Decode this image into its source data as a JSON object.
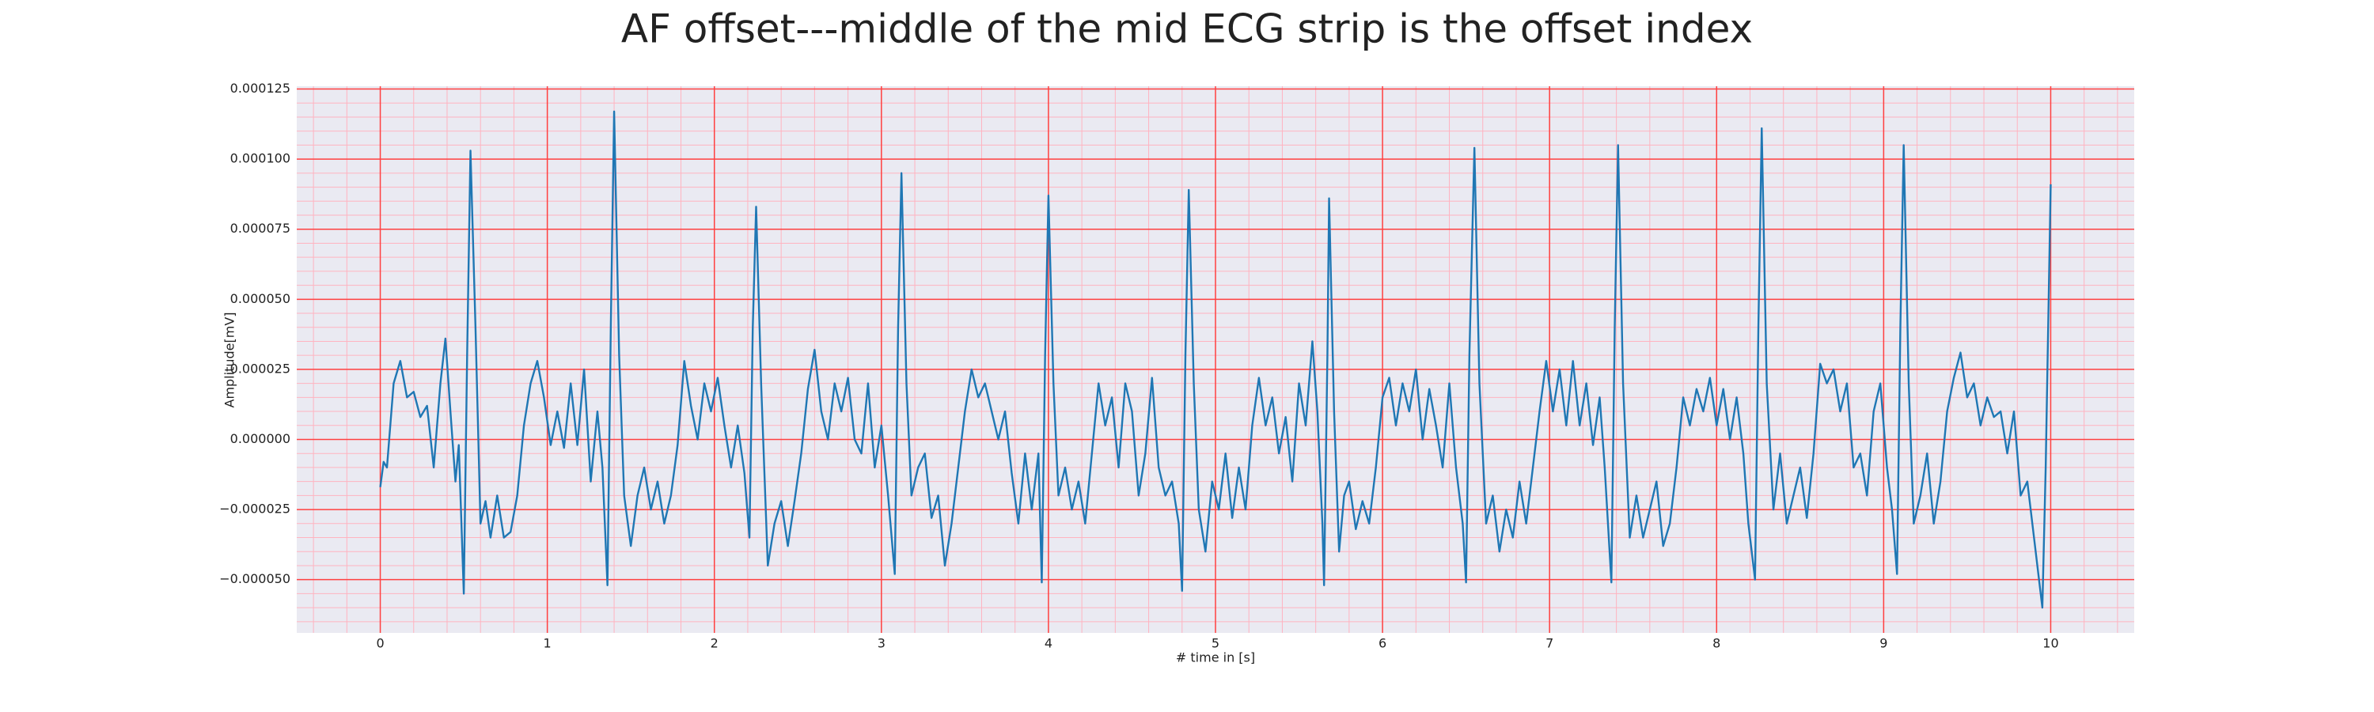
{
  "chart_data": {
    "type": "line",
    "title": "AF offset---middle of the mid ECG strip is the offset index",
    "xlabel": "# time in [s]",
    "ylabel": "Amplitude[mV]",
    "color": "#1f77b4",
    "grid": true,
    "minor_divisions": 5,
    "xlim": [
      -0.5,
      10.5
    ],
    "xticks": [
      0,
      1,
      2,
      3,
      4,
      5,
      6,
      7,
      8,
      9,
      10
    ],
    "ylim": [
      -6.9e-05,
      0.000126
    ],
    "yticks": [
      {
        "value": -5e-05,
        "label": "−0.000050"
      },
      {
        "value": -2.5e-05,
        "label": "−0.000025"
      },
      {
        "value": 0,
        "label": "0.000000"
      },
      {
        "value": 2.5e-05,
        "label": "0.000025"
      },
      {
        "value": 5e-05,
        "label": "0.000050"
      },
      {
        "value": 7.5e-05,
        "label": "0.000075"
      },
      {
        "value": 0.0001,
        "label": "0.000100"
      },
      {
        "value": 0.000125,
        "label": "0.000125"
      }
    ],
    "x": [
      0.0,
      0.02,
      0.04,
      0.08,
      0.12,
      0.16,
      0.2,
      0.24,
      0.28,
      0.32,
      0.36,
      0.39,
      0.42,
      0.45,
      0.47,
      0.5,
      0.52,
      0.54,
      0.57,
      0.6,
      0.63,
      0.66,
      0.7,
      0.74,
      0.78,
      0.82,
      0.86,
      0.9,
      0.94,
      0.98,
      1.02,
      1.06,
      1.1,
      1.14,
      1.18,
      1.22,
      1.26,
      1.3,
      1.33,
      1.36,
      1.38,
      1.4,
      1.43,
      1.46,
      1.5,
      1.54,
      1.58,
      1.62,
      1.66,
      1.7,
      1.74,
      1.78,
      1.82,
      1.86,
      1.9,
      1.94,
      1.98,
      2.02,
      2.06,
      2.1,
      2.14,
      2.18,
      2.21,
      2.23,
      2.25,
      2.28,
      2.32,
      2.36,
      2.4,
      2.44,
      2.48,
      2.52,
      2.56,
      2.6,
      2.64,
      2.68,
      2.72,
      2.76,
      2.8,
      2.84,
      2.88,
      2.92,
      2.96,
      3.0,
      3.04,
      3.08,
      3.1,
      3.12,
      3.15,
      3.18,
      3.22,
      3.26,
      3.3,
      3.34,
      3.38,
      3.42,
      3.46,
      3.5,
      3.54,
      3.58,
      3.62,
      3.66,
      3.7,
      3.74,
      3.78,
      3.82,
      3.86,
      3.9,
      3.94,
      3.96,
      3.98,
      4.0,
      4.03,
      4.06,
      4.1,
      4.14,
      4.18,
      4.22,
      4.26,
      4.3,
      4.34,
      4.38,
      4.42,
      4.46,
      4.5,
      4.54,
      4.58,
      4.62,
      4.66,
      4.7,
      4.74,
      4.78,
      4.8,
      4.82,
      4.84,
      4.87,
      4.9,
      4.94,
      4.98,
      5.02,
      5.06,
      5.1,
      5.14,
      5.18,
      5.22,
      5.26,
      5.3,
      5.34,
      5.38,
      5.42,
      5.46,
      5.5,
      5.54,
      5.58,
      5.61,
      5.64,
      5.65,
      5.67,
      5.68,
      5.71,
      5.74,
      5.77,
      5.8,
      5.84,
      5.88,
      5.92,
      5.96,
      6.0,
      6.04,
      6.08,
      6.12,
      6.16,
      6.2,
      6.24,
      6.28,
      6.32,
      6.36,
      6.4,
      6.44,
      6.48,
      6.5,
      6.52,
      6.55,
      6.58,
      6.62,
      6.66,
      6.7,
      6.74,
      6.78,
      6.82,
      6.86,
      6.9,
      6.94,
      6.98,
      7.02,
      7.06,
      7.1,
      7.14,
      7.18,
      7.22,
      7.26,
      7.3,
      7.33,
      7.37,
      7.39,
      7.41,
      7.44,
      7.48,
      7.52,
      7.56,
      7.6,
      7.64,
      7.68,
      7.72,
      7.76,
      7.8,
      7.84,
      7.88,
      7.92,
      7.96,
      8.0,
      8.04,
      8.08,
      8.12,
      8.16,
      8.19,
      8.23,
      8.25,
      8.27,
      8.3,
      8.34,
      8.38,
      8.42,
      8.46,
      8.5,
      8.54,
      8.58,
      8.62,
      8.66,
      8.7,
      8.74,
      8.78,
      8.82,
      8.86,
      8.9,
      8.94,
      8.98,
      9.02,
      9.05,
      9.08,
      9.1,
      9.12,
      9.15,
      9.18,
      9.22,
      9.26,
      9.3,
      9.34,
      9.38,
      9.42,
      9.46,
      9.5,
      9.54,
      9.58,
      9.62,
      9.66,
      9.7,
      9.74,
      9.78,
      9.82,
      9.86,
      9.9,
      9.95,
      9.97,
      10.0
    ],
    "values": [
      -1.7e-05,
      -8e-06,
      -1e-05,
      2e-05,
      2.8e-05,
      1.5e-05,
      1.7e-05,
      8e-06,
      1.2e-05,
      -1e-05,
      2e-05,
      3.6e-05,
      1e-05,
      -1.5e-05,
      -2e-06,
      -5.5e-05,
      3e-05,
      0.000103,
      4e-05,
      -3e-05,
      -2.2e-05,
      -3.5e-05,
      -2e-05,
      -3.5e-05,
      -3.3e-05,
      -2e-05,
      5e-06,
      2e-05,
      2.8e-05,
      1.5e-05,
      -2e-06,
      1e-05,
      -3e-06,
      2e-05,
      -2e-06,
      2.5e-05,
      -1.5e-05,
      1e-05,
      -1e-05,
      -5.2e-05,
      4e-05,
      0.000117,
      3e-05,
      -2e-05,
      -3.8e-05,
      -2e-05,
      -1e-05,
      -2.5e-05,
      -1.5e-05,
      -3e-05,
      -2e-05,
      -2e-06,
      2.8e-05,
      1.2e-05,
      0,
      2e-05,
      1e-05,
      2.2e-05,
      5e-06,
      -1e-05,
      5e-06,
      -1.2e-05,
      -3.5e-05,
      4e-05,
      8.3e-05,
      2e-05,
      -4.5e-05,
      -3e-05,
      -2.2e-05,
      -3.8e-05,
      -2.2e-05,
      -5e-06,
      1.8e-05,
      3.2e-05,
      1e-05,
      0,
      2e-05,
      1e-05,
      2.2e-05,
      0,
      -5e-06,
      2e-05,
      -1e-05,
      5e-06,
      -2e-05,
      -4.8e-05,
      4e-05,
      9.5e-05,
      2e-05,
      -2e-05,
      -1e-05,
      -5e-06,
      -2.8e-05,
      -2e-05,
      -4.5e-05,
      -3e-05,
      -1e-05,
      1e-05,
      2.5e-05,
      1.5e-05,
      2e-05,
      1e-05,
      0,
      1e-05,
      -1.2e-05,
      -3e-05,
      -5e-06,
      -2.5e-05,
      -5e-06,
      -5.1e-05,
      3e-05,
      8.7e-05,
      2e-05,
      -2e-05,
      -1e-05,
      -2.5e-05,
      -1.5e-05,
      -3e-05,
      -5e-06,
      2e-05,
      5e-06,
      1.5e-05,
      -1e-05,
      2e-05,
      1e-05,
      -2e-05,
      -5e-06,
      2.2e-05,
      -1e-05,
      -2e-05,
      -1.5e-05,
      -3e-05,
      -5.4e-05,
      3e-05,
      8.9e-05,
      2e-05,
      -2.5e-05,
      -4e-05,
      -1.5e-05,
      -2.5e-05,
      -5e-06,
      -2.8e-05,
      -1e-05,
      -2.5e-05,
      5e-06,
      2.2e-05,
      5e-06,
      1.5e-05,
      -5e-06,
      8e-06,
      -1.5e-05,
      2e-05,
      5e-06,
      3.5e-05,
      1e-05,
      -3e-05,
      -5.2e-05,
      3e-05,
      8.6e-05,
      1e-05,
      -4e-05,
      -2e-05,
      -1.5e-05,
      -3.2e-05,
      -2.2e-05,
      -3e-05,
      -1e-05,
      1.5e-05,
      2.2e-05,
      5e-06,
      2e-05,
      1e-05,
      2.5e-05,
      0,
      1.8e-05,
      5e-06,
      -1e-05,
      2e-05,
      -1e-05,
      -3e-05,
      -5.1e-05,
      3e-05,
      0.000104,
      2e-05,
      -3e-05,
      -2e-05,
      -4e-05,
      -2.5e-05,
      -3.5e-05,
      -1.5e-05,
      -3e-05,
      -1e-05,
      1e-05,
      2.8e-05,
      1e-05,
      2.5e-05,
      5e-06,
      2.8e-05,
      5e-06,
      2e-05,
      -2e-06,
      1.5e-05,
      -1e-05,
      -5.1e-05,
      4e-05,
      0.000105,
      2e-05,
      -3.5e-05,
      -2e-05,
      -3.5e-05,
      -2.5e-05,
      -1.5e-05,
      -3.8e-05,
      -3e-05,
      -1e-05,
      1.5e-05,
      5e-06,
      1.8e-05,
      1e-05,
      2.2e-05,
      5e-06,
      1.8e-05,
      0,
      1.5e-05,
      -5e-06,
      -3e-05,
      -5e-05,
      4e-05,
      0.000111,
      2e-05,
      -2.5e-05,
      -5e-06,
      -3e-05,
      -2e-05,
      -1e-05,
      -2.8e-05,
      -5e-06,
      2.7e-05,
      2e-05,
      2.5e-05,
      1e-05,
      2e-05,
      -1e-05,
      -5e-06,
      -2e-05,
      1e-05,
      2e-05,
      -1e-05,
      -2.5e-05,
      -4.8e-05,
      4e-05,
      0.000105,
      2e-05,
      -3e-05,
      -2e-05,
      -5e-06,
      -3e-05,
      -1.5e-05,
      1e-05,
      2.2e-05,
      3.1e-05,
      1.5e-05,
      2e-05,
      5e-06,
      1.5e-05,
      8e-06,
      1e-05,
      -5e-06,
      1e-05,
      -2e-05,
      -1.5e-05,
      -3.5e-05,
      -6e-05,
      -1e-05,
      9.1e-05
    ]
  }
}
